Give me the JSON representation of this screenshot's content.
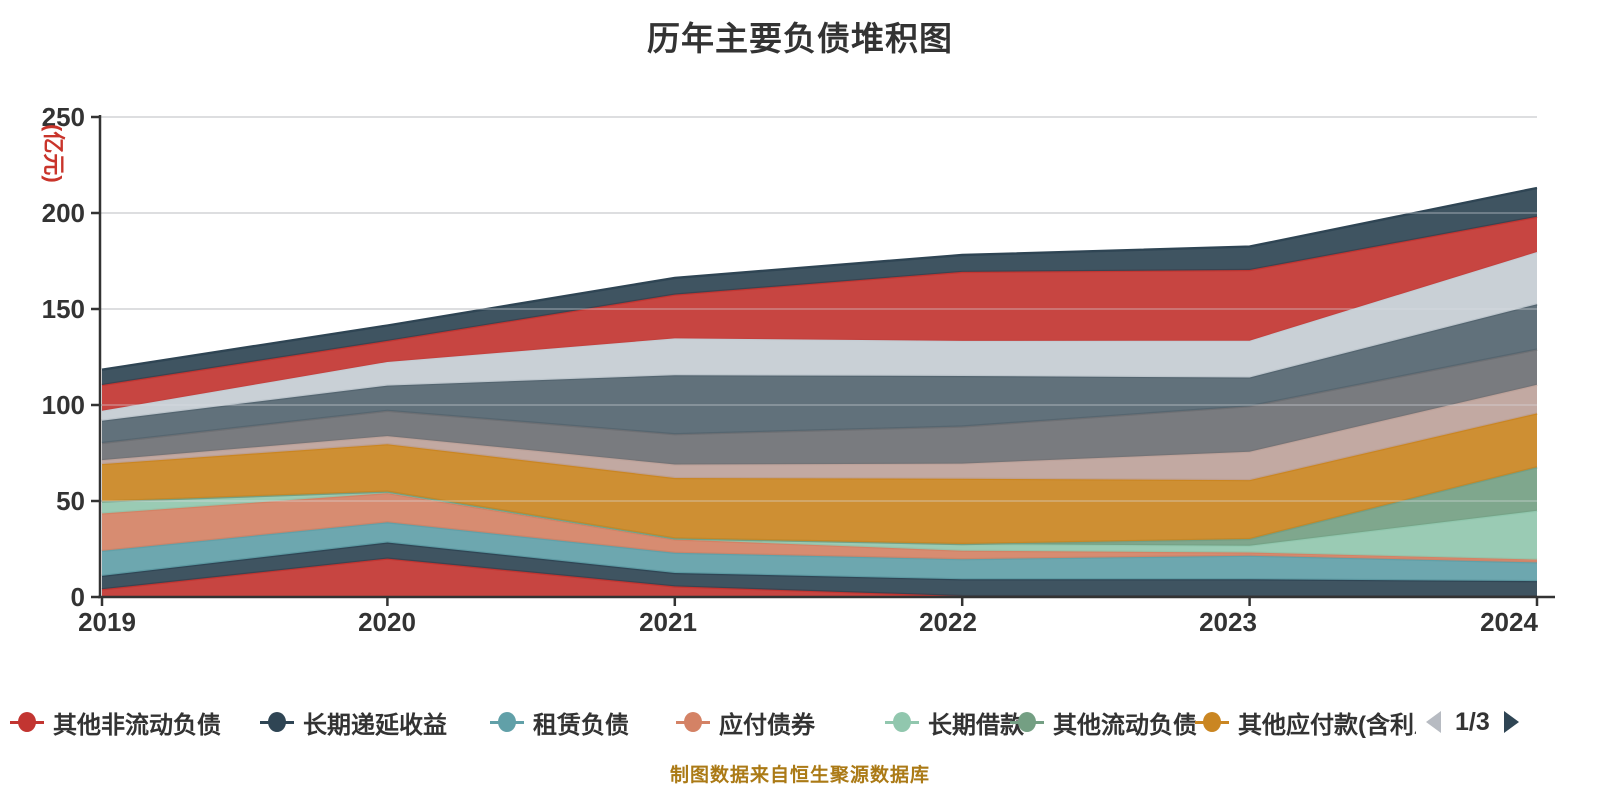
{
  "title": "历年主要负债堆积图",
  "footer": "制图数据来自恒生聚源数据库",
  "colors": {
    "background": "#ffffff",
    "title_text": "#333333",
    "axis_text": "#333333",
    "axis_line": "#333333",
    "grid_line": "#cccccc",
    "unit_label": "#c9342b",
    "footer_text": "#ab7a16",
    "legend_text": "#333333",
    "pager_prev_arrow": "#b7bbc2",
    "pager_next_arrow": "#2f4554"
  },
  "legend": {
    "pager": {
      "current": "1/3"
    },
    "item_lefts": [
      10,
      260,
      490,
      676,
      885,
      1010,
      1195
    ]
  },
  "chart_data": {
    "type": "area",
    "stacked": true,
    "title": "历年主要负债堆积图",
    "ylabel": "(亿元)",
    "xlabel": "",
    "categories": [
      "2019",
      "2020",
      "2021",
      "2022",
      "2023",
      "2024"
    ],
    "ylim": [
      0,
      250
    ],
    "yticks": [
      0,
      50,
      100,
      150,
      200,
      250
    ],
    "grid": true,
    "legend_position": "bottom",
    "series": [
      {
        "name": "其他非流动负债",
        "color": "#c23531",
        "in_legend": true,
        "values": [
          4.0,
          20.0,
          5.5,
          0.5,
          0.3,
          0.3
        ]
      },
      {
        "name": "长期递延收益",
        "color": "#2f4554",
        "in_legend": true,
        "values": [
          7.0,
          8.4,
          7.0,
          8.7,
          8.9,
          8.0
        ]
      },
      {
        "name": "租赁负债",
        "color": "#61a0a8",
        "in_legend": true,
        "values": [
          13.0,
          10.5,
          10.5,
          10.5,
          12.3,
          9.7
        ]
      },
      {
        "name": "应付债券",
        "color": "#d48265",
        "in_legend": true,
        "values": [
          19.5,
          15.2,
          7.0,
          4.4,
          1.7,
          1.5
        ]
      },
      {
        "name": "长期借款",
        "color": "#91c7ae",
        "in_legend": true,
        "values": [
          6.3,
          0.8,
          0.5,
          3.5,
          3.5,
          25.4
        ]
      },
      {
        "name": "其他流动负债",
        "color": "#749f83",
        "in_legend": true,
        "values": [
          0.0,
          0.0,
          0.0,
          0.0,
          3.5,
          22.7
        ]
      },
      {
        "name": "其他应付款(含利息",
        "color": "#ca8622",
        "in_legend": true,
        "values": [
          19.4,
          24.7,
          31.5,
          34.0,
          30.7,
          28.0
        ]
      },
      {
        "name": "",
        "color": "#bda29a",
        "in_legend": false,
        "values": [
          2.1,
          4.2,
          7.0,
          7.9,
          14.8,
          14.9
        ]
      },
      {
        "name": "",
        "color": "#6e7074",
        "in_legend": false,
        "values": [
          8.9,
          13.2,
          15.8,
          19.3,
          23.7,
          18.4
        ]
      },
      {
        "name": "",
        "color": "#546570",
        "in_legend": false,
        "values": [
          11.6,
          13.1,
          30.7,
          26.3,
          14.9,
          23.6
        ]
      },
      {
        "name": "",
        "color": "#c4ccd3",
        "in_legend": false,
        "values": [
          5.2,
          12.3,
          19.2,
          18.3,
          19.2,
          27.2
        ]
      },
      {
        "name": "",
        "color": "#c23531",
        "in_legend": false,
        "values": [
          13.4,
          11.0,
          22.8,
          35.9,
          36.8,
          18.3
        ]
      },
      {
        "name": "",
        "color": "#2f4554",
        "in_legend": false,
        "values": [
          8.0,
          8.0,
          8.7,
          8.8,
          12.2,
          15.0
        ]
      }
    ]
  }
}
